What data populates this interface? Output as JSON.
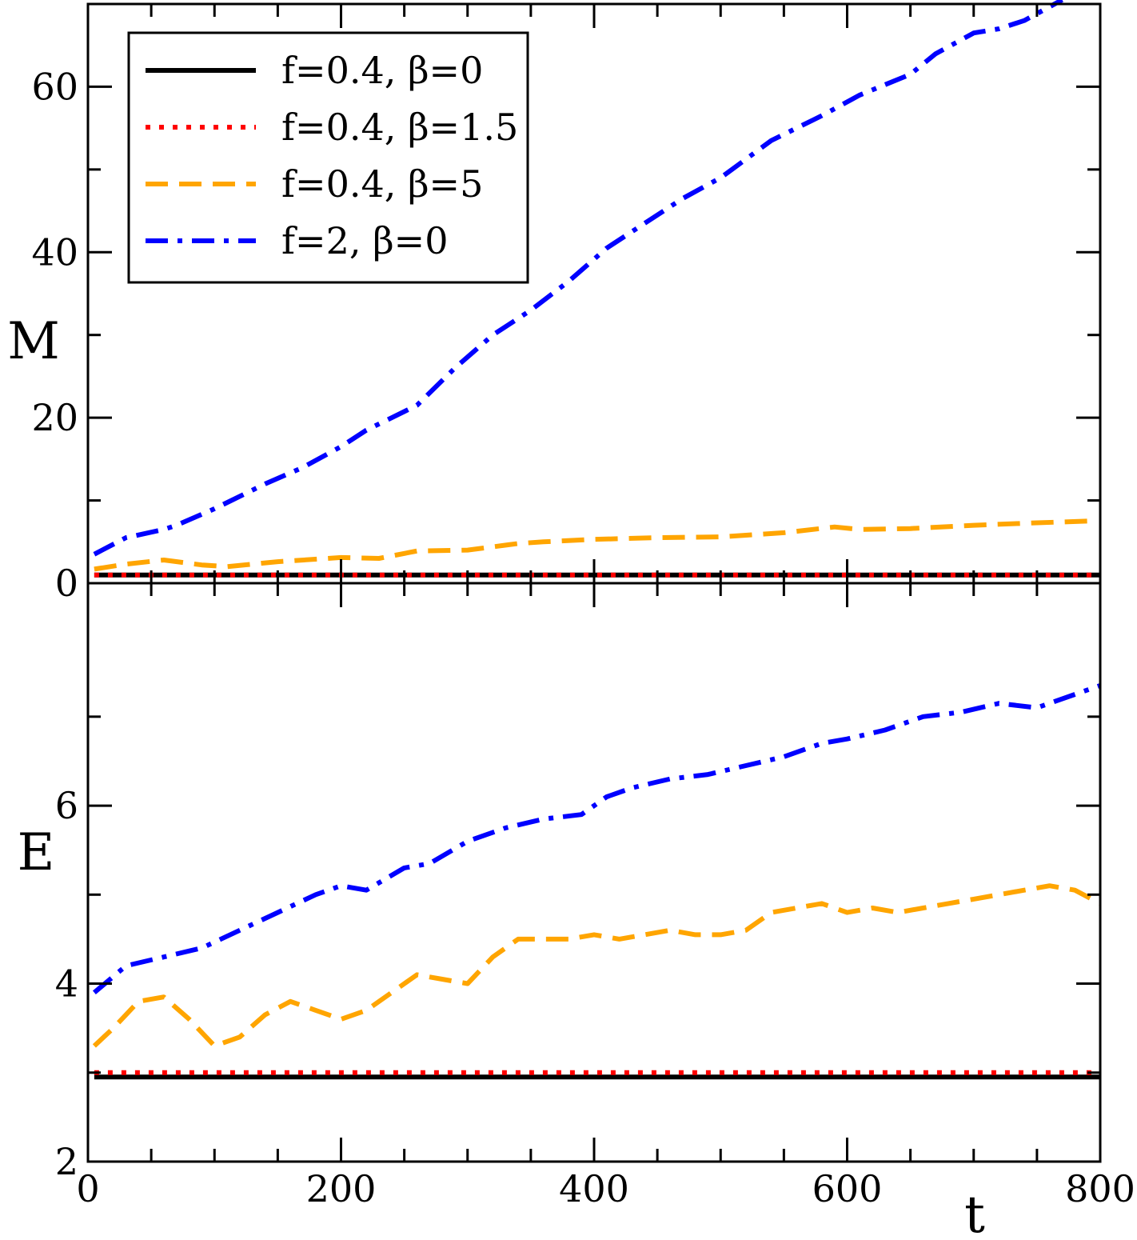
{
  "colors": {
    "black": "#000000",
    "red": "#ff0000",
    "orange": "#ffa500",
    "blue": "#0000ff"
  },
  "chart_data": [
    {
      "panel": "top",
      "type": "line",
      "ylabel": "M",
      "xlim": [
        0,
        800
      ],
      "ylim": [
        0,
        70
      ],
      "yticks": [
        0,
        20,
        40,
        60
      ],
      "ytick_labels": [
        "0",
        "20",
        "40",
        "60"
      ],
      "legend": {
        "position": "top-left"
      },
      "series": [
        {
          "name": "f=0.4, β=0",
          "color": "#000000",
          "style": "solid",
          "x": [
            5,
            100,
            200,
            300,
            400,
            500,
            600,
            700,
            800
          ],
          "y": [
            1,
            1,
            1,
            1,
            1,
            1,
            1,
            1,
            1
          ]
        },
        {
          "name": "f=0.4, β=1.5",
          "color": "#ff0000",
          "style": "dotted",
          "x": [
            5,
            100,
            200,
            300,
            400,
            500,
            600,
            700,
            800
          ],
          "y": [
            1,
            1,
            1,
            1,
            1,
            1,
            1,
            1,
            1
          ]
        },
        {
          "name": "f=0.4, β=5",
          "color": "#ffa500",
          "style": "dashed",
          "x": [
            5,
            30,
            60,
            90,
            110,
            150,
            200,
            230,
            260,
            300,
            340,
            360,
            400,
            450,
            500,
            550,
            590,
            610,
            650,
            700,
            750,
            790
          ],
          "y": [
            1.7,
            2.3,
            2.8,
            2.2,
            2.0,
            2.6,
            3.1,
            3.0,
            3.9,
            4.0,
            4.8,
            5.0,
            5.3,
            5.5,
            5.6,
            6.1,
            6.8,
            6.5,
            6.6,
            7.0,
            7.3,
            7.5
          ]
        },
        {
          "name": "f=2, β=0",
          "color": "#0000ff",
          "style": "dashdot",
          "x": [
            5,
            30,
            60,
            70,
            100,
            140,
            170,
            200,
            220,
            260,
            290,
            320,
            350,
            380,
            410,
            440,
            470,
            500,
            540,
            580,
            610,
            650,
            670,
            700,
            720,
            740,
            770
          ],
          "y": [
            3.5,
            5.5,
            6.5,
            7.0,
            9.0,
            12.0,
            14.0,
            16.5,
            18.5,
            21.5,
            26.0,
            30.0,
            33.0,
            36.5,
            40.5,
            43.5,
            46.5,
            49.0,
            53.5,
            56.5,
            59.0,
            61.5,
            64.0,
            66.5,
            67.0,
            68.0,
            70.5
          ]
        }
      ]
    },
    {
      "panel": "bottom",
      "type": "line",
      "xlabel": "t",
      "ylabel": "E",
      "xlim": [
        0,
        800
      ],
      "ylim": [
        2,
        8.5
      ],
      "xticks": [
        0,
        200,
        400,
        600,
        800
      ],
      "xtick_labels": [
        "0",
        "200",
        "400",
        "600",
        "800"
      ],
      "yticks": [
        2,
        4,
        6
      ],
      "ytick_labels": [
        "2",
        "4",
        "6"
      ],
      "series": [
        {
          "name": "f=0.4, β=0",
          "color": "#000000",
          "style": "solid",
          "x": [
            5,
            100,
            200,
            300,
            400,
            500,
            600,
            700,
            800
          ],
          "y": [
            2.95,
            2.95,
            2.95,
            2.95,
            2.95,
            2.95,
            2.95,
            2.95,
            2.95
          ]
        },
        {
          "name": "f=0.4, β=1.5",
          "color": "#ff0000",
          "style": "dotted",
          "x": [
            5,
            100,
            200,
            300,
            400,
            500,
            600,
            700,
            800
          ],
          "y": [
            3.0,
            3.0,
            3.0,
            3.0,
            3.0,
            3.0,
            3.0,
            3.0,
            3.0
          ]
        },
        {
          "name": "f=0.4, β=5",
          "color": "#ffa500",
          "style": "dashed",
          "x": [
            5,
            20,
            40,
            60,
            80,
            100,
            120,
            140,
            160,
            180,
            200,
            220,
            240,
            260,
            280,
            300,
            320,
            340,
            360,
            380,
            400,
            420,
            440,
            460,
            480,
            500,
            520,
            540,
            560,
            580,
            600,
            620,
            640,
            660,
            680,
            700,
            720,
            740,
            760,
            780,
            800
          ],
          "y": [
            3.3,
            3.5,
            3.8,
            3.85,
            3.6,
            3.3,
            3.4,
            3.65,
            3.8,
            3.7,
            3.6,
            3.7,
            3.9,
            4.1,
            4.05,
            4.0,
            4.3,
            4.5,
            4.5,
            4.5,
            4.55,
            4.5,
            4.55,
            4.6,
            4.55,
            4.55,
            4.6,
            4.8,
            4.85,
            4.9,
            4.8,
            4.85,
            4.8,
            4.85,
            4.9,
            4.95,
            5.0,
            5.05,
            5.1,
            5.05,
            4.9
          ]
        },
        {
          "name": "f=2, β=0",
          "color": "#0000ff",
          "style": "dashdot",
          "x": [
            5,
            30,
            60,
            90,
            120,
            150,
            180,
            200,
            220,
            250,
            270,
            300,
            330,
            360,
            390,
            410,
            430,
            460,
            490,
            520,
            550,
            580,
            600,
            630,
            660,
            690,
            720,
            750,
            780,
            800
          ],
          "y": [
            3.9,
            4.2,
            4.3,
            4.4,
            4.6,
            4.8,
            5.0,
            5.1,
            5.05,
            5.3,
            5.35,
            5.6,
            5.75,
            5.85,
            5.9,
            6.1,
            6.2,
            6.3,
            6.35,
            6.45,
            6.55,
            6.7,
            6.75,
            6.85,
            7.0,
            7.05,
            7.15,
            7.1,
            7.25,
            7.35
          ]
        }
      ]
    }
  ]
}
